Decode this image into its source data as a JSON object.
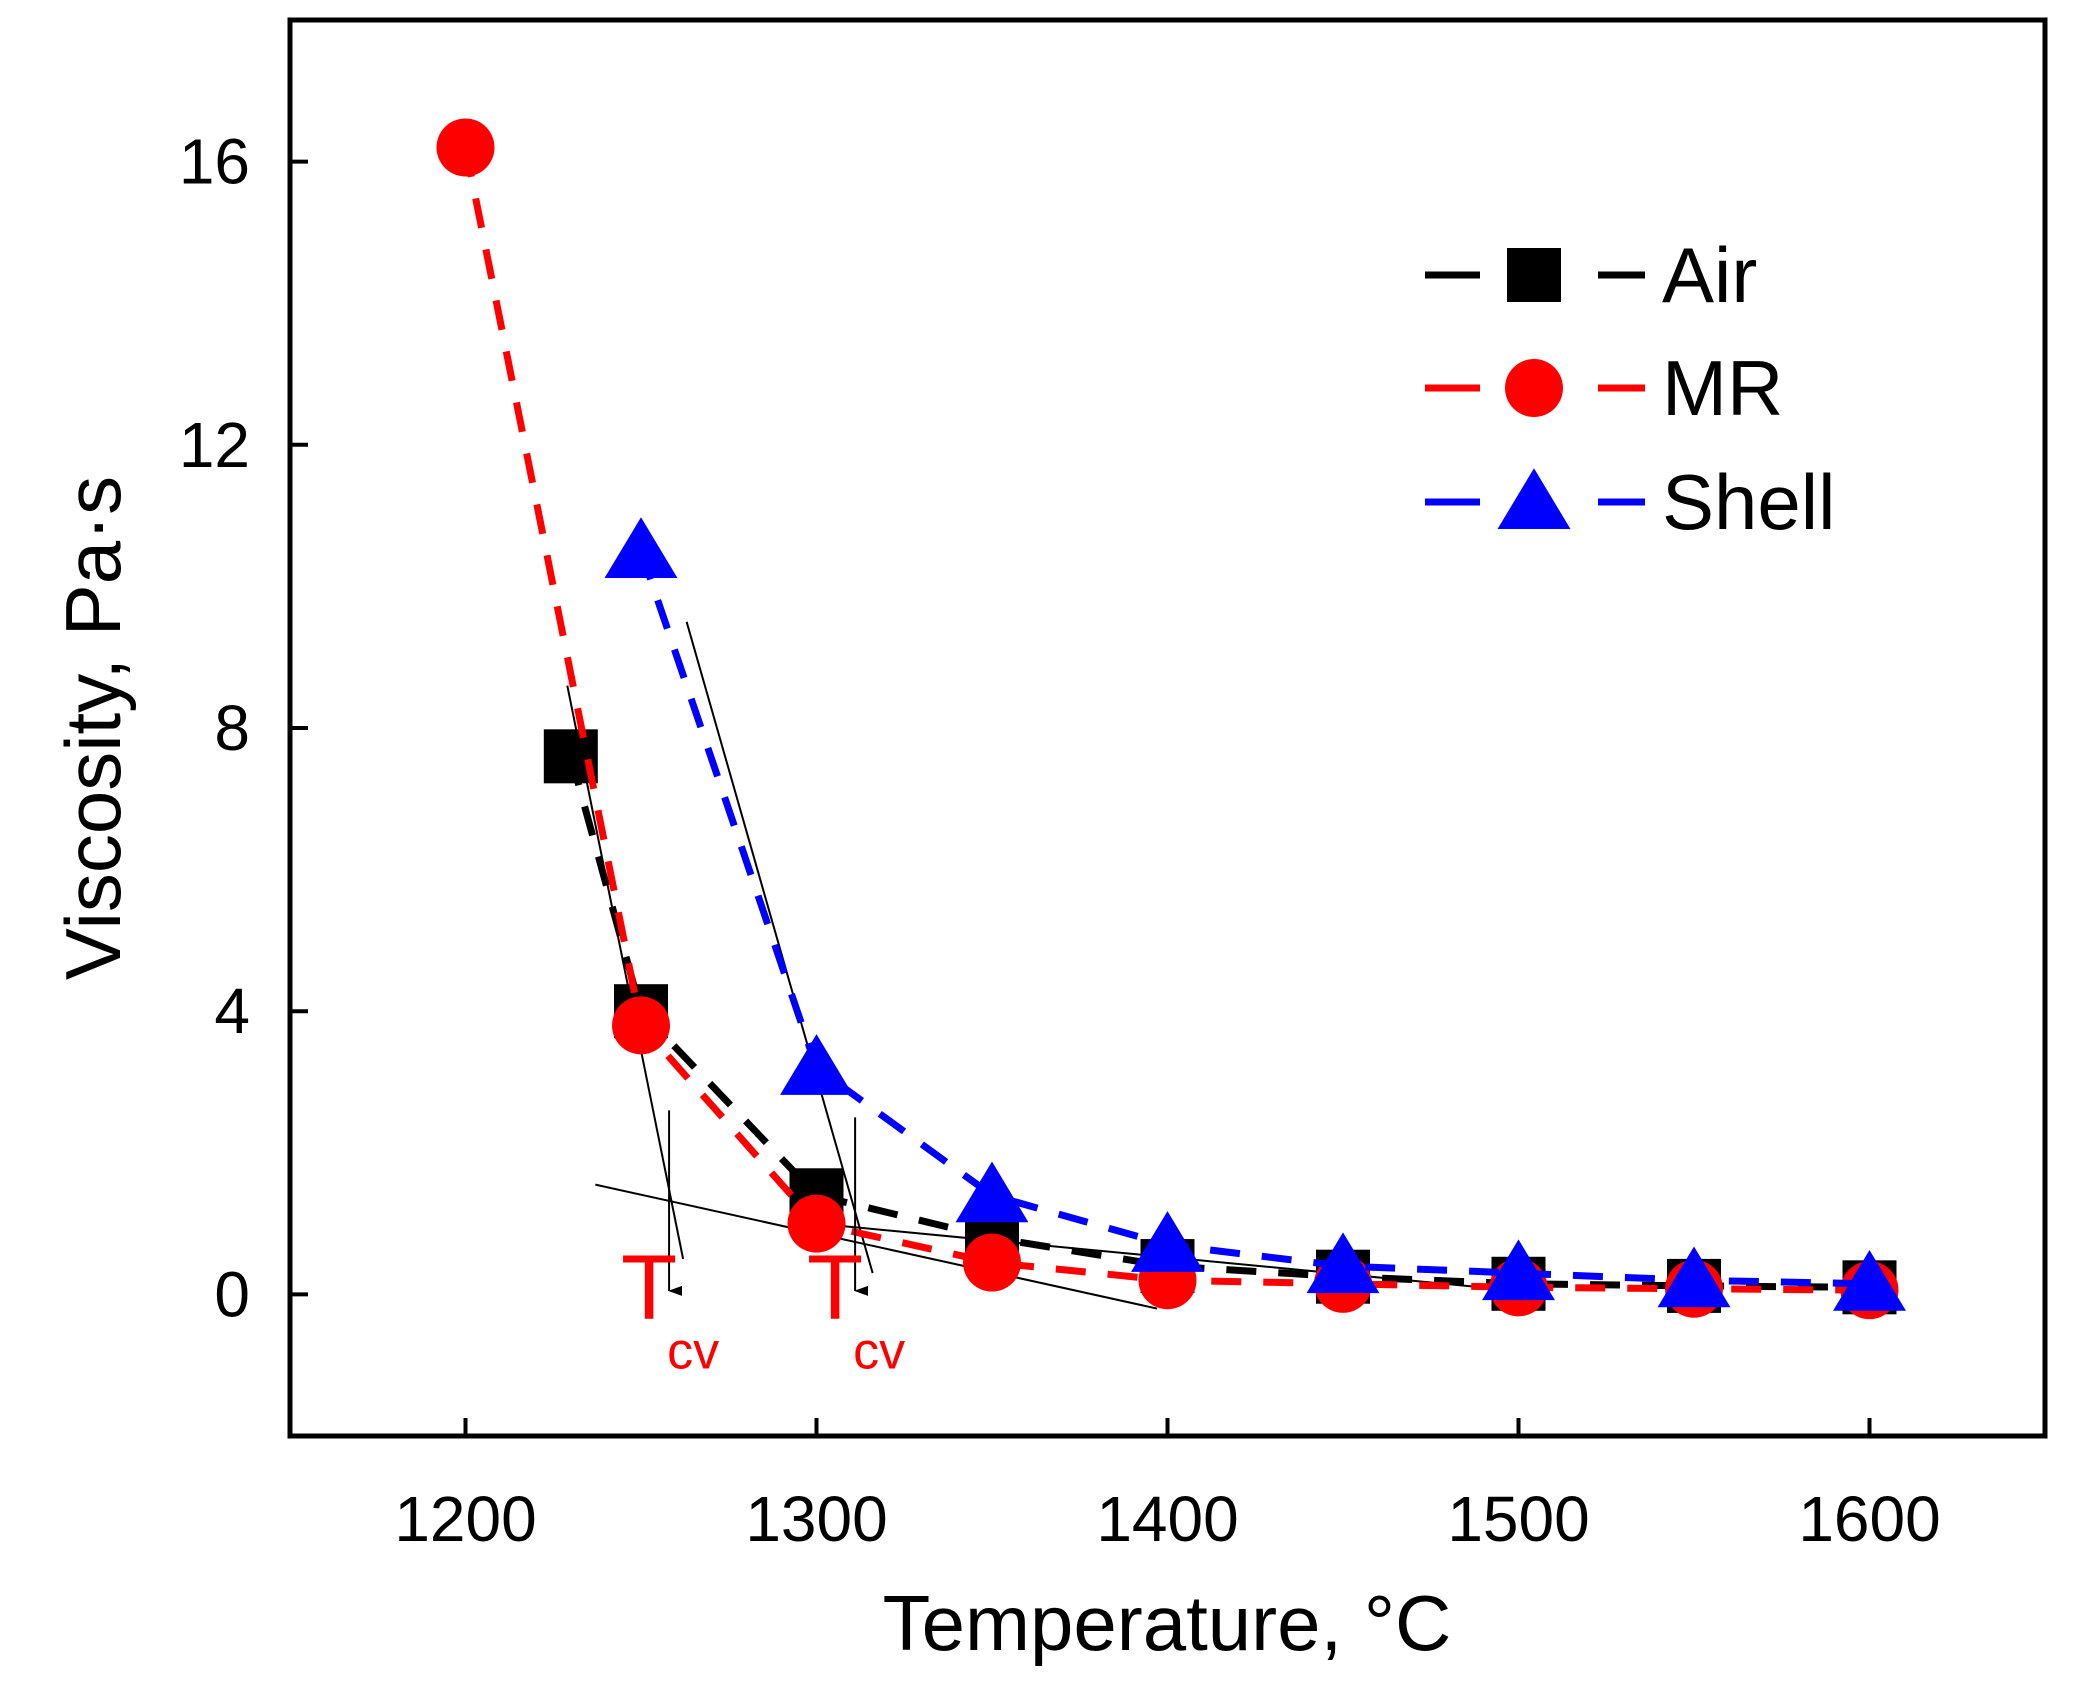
{
  "chart_data": {
    "type": "line",
    "title": "",
    "xlabel": "Temperature, °C",
    "ylabel": "Viscosity, Pa·s",
    "xlim": [
      1150,
      1650
    ],
    "ylim": [
      -2,
      18
    ],
    "xticks": [
      1200,
      1300,
      1400,
      1500,
      1600
    ],
    "yticks": [
      0,
      4,
      8,
      12,
      16
    ],
    "grid": false,
    "legend": "top-right",
    "series": [
      {
        "name": "Air",
        "color": "#000000",
        "marker": "square",
        "x": [
          1230,
          1250,
          1300,
          1350,
          1400,
          1450,
          1500,
          1550,
          1600
        ],
        "y": [
          7.6,
          4.0,
          1.4,
          0.8,
          0.4,
          0.25,
          0.15,
          0.12,
          0.1
        ]
      },
      {
        "name": "MR",
        "color": "#ff0000",
        "marker": "circle",
        "x": [
          1200,
          1250,
          1300,
          1350,
          1400,
          1450,
          1500,
          1550,
          1600
        ],
        "y": [
          16.2,
          3.8,
          1.0,
          0.45,
          0.2,
          0.15,
          0.1,
          0.08,
          0.06
        ]
      },
      {
        "name": "Shell",
        "color": "#0000ff",
        "marker": "triangle",
        "x": [
          1250,
          1300,
          1350,
          1400,
          1450,
          1500,
          1550,
          1600
        ],
        "y": [
          10.5,
          3.2,
          1.4,
          0.7,
          0.4,
          0.3,
          0.2,
          0.15
        ]
      }
    ],
    "annotations": [
      {
        "text": "T",
        "subscript": "cv",
        "color": "#ff0000",
        "x": 1258,
        "lines": [
          {
            "x1": 1229,
            "y1": 8.6,
            "x2": 1262,
            "y2": 0.5
          },
          {
            "x1": 1237,
            "y1": 1.55,
            "x2": 1397,
            "y2": -0.2
          }
        ],
        "arrow": {
          "x": 1258,
          "y1": 2.6,
          "y2": 0.05
        }
      },
      {
        "text": "T",
        "subscript": "cv",
        "color": "#ff0000",
        "x": 1311,
        "lines": [
          {
            "x1": 1263,
            "y1": 9.5,
            "x2": 1316,
            "y2": 0.3
          },
          {
            "x1": 1300,
            "y1": 1.0,
            "x2": 1500,
            "y2": 0.05
          }
        ],
        "arrow": {
          "x": 1311,
          "y1": 2.5,
          "y2": 0.05
        }
      }
    ]
  }
}
